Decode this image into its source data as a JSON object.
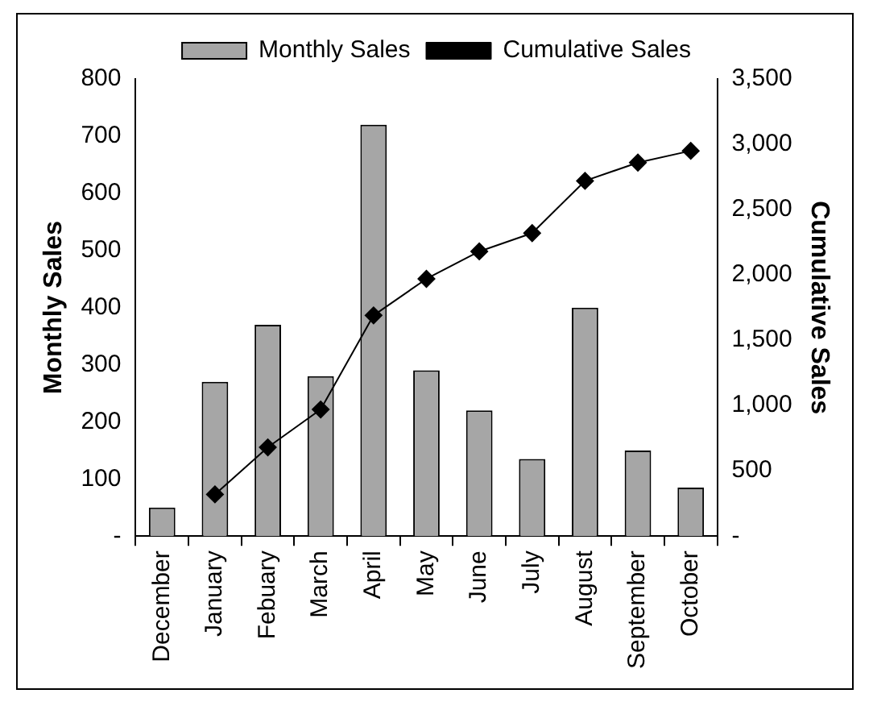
{
  "chart_data": {
    "type": "bar",
    "xlabel": null,
    "ylabel": "Monthly Sales",
    "y2label": "Cumulative Sales",
    "categories": [
      "December",
      "January",
      "Febuary",
      "March",
      "April",
      "May",
      "June",
      "July",
      "August",
      "September",
      "October"
    ],
    "series": [
      {
        "name": "Monthly Sales",
        "color": "#a6a6a6",
        "values": [
          50,
          270,
          370,
          280,
          720,
          290,
          220,
          135,
          400,
          150,
          85
        ]
      },
      {
        "name": "Cumulative Sales",
        "type": "line",
        "axis": "y2",
        "color": "#000000",
        "marker": "diamond",
        "values": [
          null,
          320,
          680,
          970,
          1690,
          1970,
          2180,
          2320,
          2720,
          2860,
          2950
        ]
      }
    ],
    "ylim": [
      0,
      800
    ],
    "yticks": [
      {
        "value": 0,
        "label": "-"
      },
      100,
      200,
      300,
      400,
      500,
      600,
      700,
      800
    ],
    "y2lim": [
      0,
      3500
    ],
    "y2ticks": [
      {
        "value": 0,
        "label": "-"
      },
      {
        "value": 500,
        "label": "500"
      },
      {
        "value": 1000,
        "label": "1,000"
      },
      {
        "value": 1500,
        "label": "1,500"
      },
      {
        "value": 2000,
        "label": "2,000"
      },
      {
        "value": 2500,
        "label": "2,500"
      },
      {
        "value": 3000,
        "label": "3,000"
      },
      {
        "value": 3500,
        "label": "3,500"
      }
    ],
    "grid": false,
    "legend": "top"
  }
}
